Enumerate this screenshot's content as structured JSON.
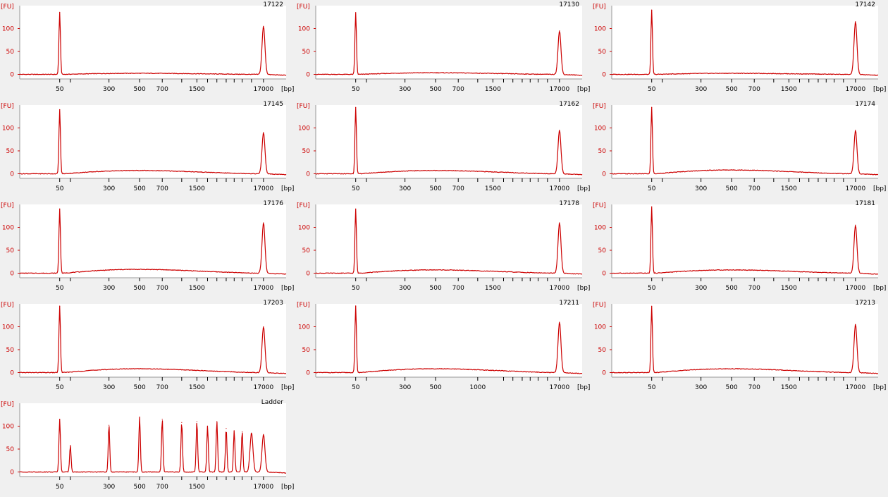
{
  "colors": {
    "trace": "#cc0000",
    "plot_bg": "#ffffff",
    "page_bg": "#f0f0f0",
    "axis": "#000000"
  },
  "chart_data": [
    {
      "type": "line",
      "title": "17122",
      "ylabel": "[FU]",
      "xlabel": "[bp]",
      "yticks": [
        0,
        50,
        100
      ],
      "ylim": [
        -10,
        150
      ],
      "xtick_labels": [
        "50",
        "300",
        "500",
        "700",
        "1500",
        "17000"
      ],
      "series": [
        {
          "peaks": [
            {
              "bp": 50,
              "fu": 135
            },
            {
              "bp": 17000,
              "fu": 105
            }
          ],
          "smear_fu": 2
        }
      ]
    },
    {
      "type": "line",
      "title": "17130",
      "ylabel": "[FU]",
      "xlabel": "[bp]",
      "yticks": [
        0,
        50,
        100
      ],
      "ylim": [
        -10,
        150
      ],
      "xtick_labels": [
        "50",
        "300",
        "500",
        "700",
        "1500",
        "17000"
      ],
      "series": [
        {
          "peaks": [
            {
              "bp": 50,
              "fu": 135
            },
            {
              "bp": 17000,
              "fu": 95
            }
          ],
          "smear_fu": 3
        }
      ]
    },
    {
      "type": "line",
      "title": "17142",
      "ylabel": "[FU]",
      "xlabel": "[bp]",
      "yticks": [
        0,
        50,
        100
      ],
      "ylim": [
        -10,
        150
      ],
      "xtick_labels": [
        "50",
        "300",
        "500",
        "700",
        "1500",
        "17000"
      ],
      "series": [
        {
          "peaks": [
            {
              "bp": 50,
              "fu": 140
            },
            {
              "bp": 17000,
              "fu": 115
            }
          ],
          "smear_fu": 2
        }
      ]
    },
    {
      "type": "line",
      "title": "17145",
      "ylabel": "[FU]",
      "xlabel": "[bp]",
      "yticks": [
        0,
        50,
        100
      ],
      "ylim": [
        -10,
        150
      ],
      "xtick_labels": [
        "50",
        "300",
        "500",
        "700",
        "1500",
        "17000"
      ],
      "series": [
        {
          "peaks": [
            {
              "bp": 50,
              "fu": 140
            },
            {
              "bp": 17000,
              "fu": 90
            }
          ],
          "smear_fu": 6
        }
      ]
    },
    {
      "type": "line",
      "title": "17162",
      "ylabel": "[FU]",
      "xlabel": "[bp]",
      "yticks": [
        0,
        50,
        100
      ],
      "ylim": [
        -10,
        150
      ],
      "xtick_labels": [
        "50",
        "300",
        "500",
        "700",
        "1500",
        "17000"
      ],
      "series": [
        {
          "peaks": [
            {
              "bp": 50,
              "fu": 145
            },
            {
              "bp": 17000,
              "fu": 95
            }
          ],
          "smear_fu": 6
        }
      ]
    },
    {
      "type": "line",
      "title": "17174",
      "ylabel": "[FU]",
      "xlabel": "[bp]",
      "yticks": [
        0,
        50,
        100
      ],
      "ylim": [
        -10,
        150
      ],
      "xtick_labels": [
        "50",
        "300",
        "500",
        "700",
        "1500",
        "17000"
      ],
      "series": [
        {
          "peaks": [
            {
              "bp": 50,
              "fu": 145
            },
            {
              "bp": 17000,
              "fu": 95
            }
          ],
          "smear_fu": 7
        }
      ]
    },
    {
      "type": "line",
      "title": "17176",
      "ylabel": "[FU]",
      "xlabel": "[bp]",
      "yticks": [
        0,
        50,
        100
      ],
      "ylim": [
        -10,
        150
      ],
      "xtick_labels": [
        "50",
        "300",
        "500",
        "700",
        "1500",
        "17000"
      ],
      "series": [
        {
          "peaks": [
            {
              "bp": 50,
              "fu": 140
            },
            {
              "bp": 17000,
              "fu": 110
            }
          ],
          "smear_fu": 7
        }
      ]
    },
    {
      "type": "line",
      "title": "17178",
      "ylabel": "[FU]",
      "xlabel": "[bp]",
      "yticks": [
        0,
        50,
        100
      ],
      "ylim": [
        -10,
        150
      ],
      "xtick_labels": [
        "50",
        "300",
        "500",
        "700",
        "1500",
        "17000"
      ],
      "series": [
        {
          "peaks": [
            {
              "bp": 50,
              "fu": 140
            },
            {
              "bp": 17000,
              "fu": 110
            }
          ],
          "smear_fu": 6
        }
      ]
    },
    {
      "type": "line",
      "title": "17181",
      "ylabel": "[FU]",
      "xlabel": "[bp]",
      "yticks": [
        0,
        50,
        100
      ],
      "ylim": [
        -10,
        150
      ],
      "xtick_labels": [
        "50",
        "300",
        "500",
        "700",
        "1500",
        "17000"
      ],
      "series": [
        {
          "peaks": [
            {
              "bp": 50,
              "fu": 145
            },
            {
              "bp": 17000,
              "fu": 105
            }
          ],
          "smear_fu": 6
        }
      ]
    },
    {
      "type": "line",
      "title": "17203",
      "ylabel": "[FU]",
      "xlabel": "[bp]",
      "yticks": [
        0,
        50,
        100
      ],
      "ylim": [
        -10,
        150
      ],
      "xtick_labels": [
        "50",
        "300",
        "500",
        "700",
        "1500",
        "17000"
      ],
      "series": [
        {
          "peaks": [
            {
              "bp": 50,
              "fu": 145
            },
            {
              "bp": 17000,
              "fu": 100
            }
          ],
          "smear_fu": 7
        }
      ]
    },
    {
      "type": "line",
      "title": "17211",
      "ylabel": "[FU]",
      "xlabel": "[bp]",
      "yticks": [
        0,
        50,
        100
      ],
      "ylim": [
        -10,
        150
      ],
      "xtick_labels": [
        "50",
        "300",
        "500",
        "1000",
        "17000"
      ],
      "series": [
        {
          "peaks": [
            {
              "bp": 50,
              "fu": 145
            },
            {
              "bp": 17000,
              "fu": 110
            }
          ],
          "smear_fu": 7
        }
      ]
    },
    {
      "type": "line",
      "title": "17213",
      "ylabel": "[FU]",
      "xlabel": "[bp]",
      "yticks": [
        0,
        50,
        100
      ],
      "ylim": [
        -10,
        150
      ],
      "xtick_labels": [
        "50",
        "300",
        "500",
        "700",
        "1500",
        "17000"
      ],
      "series": [
        {
          "peaks": [
            {
              "bp": 50,
              "fu": 145
            },
            {
              "bp": 17000,
              "fu": 105
            }
          ],
          "smear_fu": 7
        }
      ]
    },
    {
      "type": "line",
      "title": "Ladder",
      "ylabel": "[FU]",
      "xlabel": "[bp]",
      "yticks": [
        0,
        50,
        100
      ],
      "ylim": [
        -10,
        150
      ],
      "xtick_labels": [
        "50",
        "300",
        "500",
        "700",
        "1500",
        "17000"
      ],
      "series": [
        {
          "peaks": [
            {
              "bp": 50,
              "fu": 115
            },
            {
              "bp": 100,
              "fu": 58
            },
            {
              "bp": 300,
              "fu": 102
            },
            {
              "bp": 500,
              "fu": 120
            },
            {
              "bp": 700,
              "fu": 115
            },
            {
              "bp": 1000,
              "fu": 108
            },
            {
              "bp": 1500,
              "fu": 110
            },
            {
              "bp": 2000,
              "fu": 100
            },
            {
              "bp": 3000,
              "fu": 110
            },
            {
              "bp": 4000,
              "fu": 95
            },
            {
              "bp": 5000,
              "fu": 90
            },
            {
              "bp": 7000,
              "fu": 88
            },
            {
              "bp": 10380,
              "fu": 85
            },
            {
              "bp": 17000,
              "fu": 82
            }
          ],
          "smear_fu": 0
        }
      ]
    }
  ]
}
